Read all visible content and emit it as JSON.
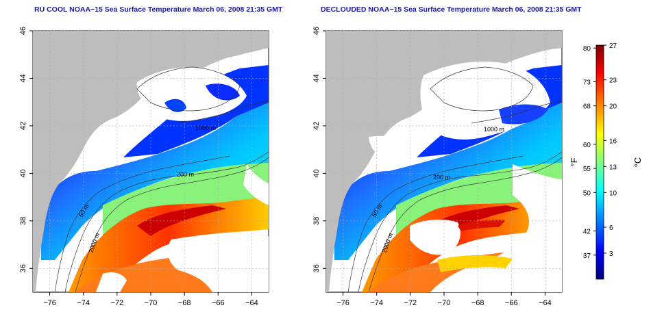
{
  "panels": [
    {
      "title": "RU COOL NOAA−15 Sea Surface Temperature March 06, 2008 21:35 GMT",
      "contours": [
        "50 m",
        "200 m",
        "1000 m",
        "2000 m"
      ],
      "cloud_masked": false
    },
    {
      "title": "DECLOUDED NOAA−15 Sea Surface Temperature March 06, 2008 21:35 GMT",
      "contours": [
        "50 m",
        "200 m",
        "1000 m",
        "2000 m"
      ],
      "cloud_masked": true
    }
  ],
  "axes": {
    "lon_ticks": [
      "−76",
      "−74",
      "−72",
      "−70",
      "−68",
      "−66",
      "−64"
    ],
    "lat_ticks": [
      "36",
      "38",
      "40",
      "42",
      "44",
      "46"
    ],
    "lon_range": [
      -77,
      -63
    ],
    "lat_range": [
      35,
      46
    ]
  },
  "colorbar": {
    "f_label": "°F",
    "c_label": "°C",
    "f_ticks": [
      "80",
      "73",
      "68",
      "60",
      "55",
      "50",
      "42",
      "37"
    ],
    "f_values": [
      80,
      73,
      68,
      60,
      55,
      50,
      42,
      37
    ],
    "c_ticks": [
      "27",
      "23",
      "20",
      "16",
      "13",
      "10",
      "6",
      "3"
    ],
    "c_values": [
      27,
      23,
      20,
      16,
      13,
      10,
      6,
      3
    ],
    "c_range": [
      0,
      27
    ]
  },
  "colors": {
    "land": "#bdbdbd",
    "cloud": "#ffffff",
    "grid": "#aaaaaa",
    "scale": [
      "#00007f",
      "#0000ff",
      "#007fff",
      "#00ffff",
      "#7fff7f",
      "#ffff00",
      "#ff7f00",
      "#ff0000",
      "#7f0000"
    ]
  }
}
